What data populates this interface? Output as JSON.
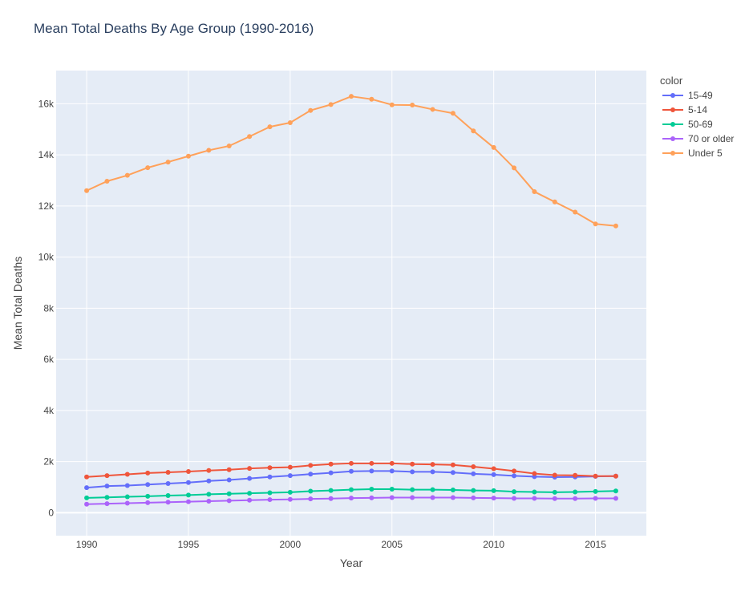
{
  "chart_data": {
    "type": "line",
    "title": "Mean Total Deaths By Age Group (1990-2016)",
    "xlabel": "Year",
    "ylabel": "Mean Total Deaths",
    "xlim": [
      1988.5,
      2017.5
    ],
    "ylim": [
      -900,
      17300
    ],
    "x_ticks": [
      1990,
      1995,
      2000,
      2005,
      2010,
      2015
    ],
    "y_ticks": [
      0,
      2000,
      4000,
      6000,
      8000,
      10000,
      12000,
      14000,
      16000
    ],
    "y_tick_labels": [
      "0",
      "2k",
      "4k",
      "6k",
      "8k",
      "10k",
      "12k",
      "14k",
      "16k"
    ],
    "grid": true,
    "legend_title": "color",
    "legend_position": "right",
    "x": [
      1990,
      1991,
      1992,
      1993,
      1994,
      1995,
      1996,
      1997,
      1998,
      1999,
      2000,
      2001,
      2002,
      2003,
      2004,
      2005,
      2006,
      2007,
      2008,
      2009,
      2010,
      2011,
      2012,
      2013,
      2014,
      2015,
      2016
    ],
    "series": [
      {
        "name": "15-49",
        "color": "#636efa",
        "values": [
          980,
          1040,
          1060,
          1100,
          1140,
          1180,
          1240,
          1280,
          1340,
          1400,
          1450,
          1510,
          1560,
          1620,
          1630,
          1630,
          1600,
          1600,
          1570,
          1520,
          1490,
          1440,
          1410,
          1390,
          1400,
          1420,
          1430
        ]
      },
      {
        "name": "5-14",
        "color": "#ef553b",
        "values": [
          1400,
          1450,
          1500,
          1550,
          1580,
          1610,
          1650,
          1680,
          1730,
          1760,
          1780,
          1850,
          1900,
          1930,
          1930,
          1930,
          1900,
          1890,
          1870,
          1800,
          1720,
          1630,
          1530,
          1470,
          1460,
          1430,
          1430
        ]
      },
      {
        "name": "50-69",
        "color": "#00cc96",
        "values": [
          580,
          600,
          620,
          640,
          670,
          690,
          720,
          740,
          760,
          780,
          800,
          840,
          870,
          900,
          920,
          920,
          900,
          900,
          890,
          870,
          860,
          820,
          810,
          800,
          810,
          830,
          850
        ]
      },
      {
        "name": "70 or older",
        "color": "#ab63fa",
        "values": [
          330,
          350,
          370,
          390,
          410,
          430,
          450,
          470,
          490,
          510,
          520,
          540,
          550,
          570,
          580,
          590,
          590,
          590,
          590,
          580,
          570,
          560,
          560,
          550,
          550,
          560,
          560
        ]
      },
      {
        "name": "Under 5",
        "color": "#ffa15a",
        "values": [
          12600,
          12970,
          13200,
          13500,
          13720,
          13950,
          14180,
          14350,
          14720,
          15100,
          15260,
          15740,
          15970,
          16290,
          16180,
          15960,
          15950,
          15780,
          15630,
          14940,
          14290,
          13490,
          12560,
          12160,
          11760,
          11300,
          11220
        ]
      }
    ]
  }
}
